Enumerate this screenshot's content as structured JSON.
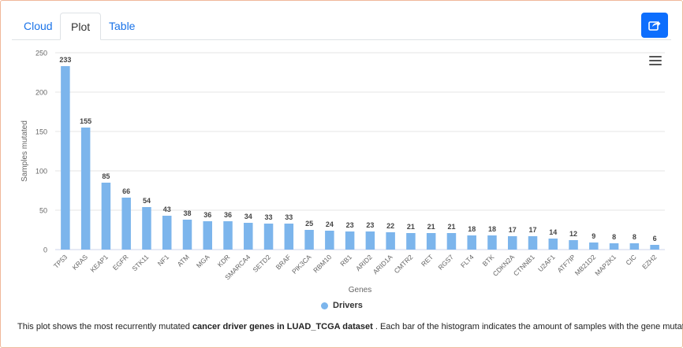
{
  "tabs": [
    {
      "label": "Cloud",
      "active": false
    },
    {
      "label": "Plot",
      "active": true
    },
    {
      "label": "Table",
      "active": false
    }
  ],
  "share_icon": "share-icon",
  "menu_icon": "hamburger-menu-icon",
  "caption": {
    "prefix": "This plot shows the most recurrently mutated ",
    "bold": "cancer driver genes in LUAD_TCGA dataset",
    "suffix": " . Each bar of the histogram indicates the amount of samples with the gene mutated."
  },
  "chart_data": {
    "type": "bar",
    "title": "",
    "xlabel": "Genes",
    "ylabel": "Samples mutated",
    "ylim": [
      0,
      250
    ],
    "yticks": [
      0,
      50,
      100,
      150,
      200,
      250
    ],
    "grid": true,
    "legend_placement": "bottom-center",
    "color": "#7cb5ec",
    "categories": [
      "TP53",
      "KRAS",
      "KEAP1",
      "EGFR",
      "STK11",
      "NF1",
      "ATM",
      "MGA",
      "KDR",
      "SMARCA4",
      "SETD2",
      "BRAF",
      "PIK3CA",
      "RBM10",
      "RB1",
      "ARID2",
      "ARID1A",
      "CMTR2",
      "RET",
      "RGS7",
      "FLT4",
      "BTK",
      "CDKN2A",
      "CTNNB1",
      "U2AF1",
      "ATF7IP",
      "MB21D2",
      "MAP2K1",
      "CIC",
      "EZH2"
    ],
    "series": [
      {
        "name": "Drivers",
        "values": [
          233,
          155,
          85,
          66,
          54,
          43,
          38,
          36,
          36,
          34,
          33,
          33,
          25,
          24,
          23,
          23,
          22,
          21,
          21,
          21,
          18,
          18,
          17,
          17,
          14,
          12,
          9,
          8,
          8,
          6
        ]
      }
    ]
  }
}
